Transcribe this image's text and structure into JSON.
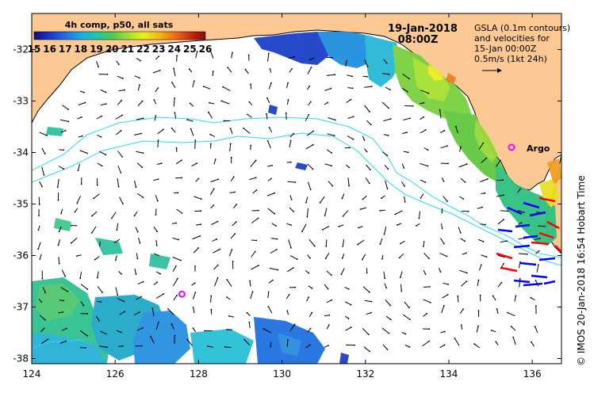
{
  "map": {
    "lon_ticks": [
      "124",
      "126",
      "128",
      "130",
      "132",
      "134",
      "136"
    ],
    "lat_ticks": [
      "-32",
      "-33",
      "-34",
      "-35",
      "-36",
      "-37",
      "-38"
    ],
    "lon_range": [
      124,
      136.7
    ],
    "lat_range": [
      -38.1,
      -31.3
    ]
  },
  "colorbar": {
    "title": "4h comp, p50, all sats",
    "ticks": [
      "15",
      "16",
      "17",
      "18",
      "19",
      "20",
      "21",
      "22",
      "23",
      "24",
      "25",
      "26"
    ],
    "range": [
      15,
      26
    ]
  },
  "header": {
    "date": "19-Jan-2018",
    "time": "08:00Z"
  },
  "info": {
    "line1": "GSLA (0.1m contours)",
    "line2": "and velocities for",
    "line3": "15-Jan 00:00Z",
    "line4": "0.5m/s (1kt 24h)"
  },
  "argo": {
    "label": "Argo",
    "floats": [
      {
        "lon": 135.5,
        "lat": -33.9
      },
      {
        "lon": 127.6,
        "lat": -36.75
      }
    ]
  },
  "credit": "© IMOS 20-Jan-2018 16:54 Hobart Time",
  "colors": {
    "land": "#fcc995",
    "ocean": "#ffffff",
    "contour": "#30d8e8",
    "argo": "#ff00ff",
    "drifter_fast": "#ff0000",
    "drifter_slow": "#0000ff"
  }
}
